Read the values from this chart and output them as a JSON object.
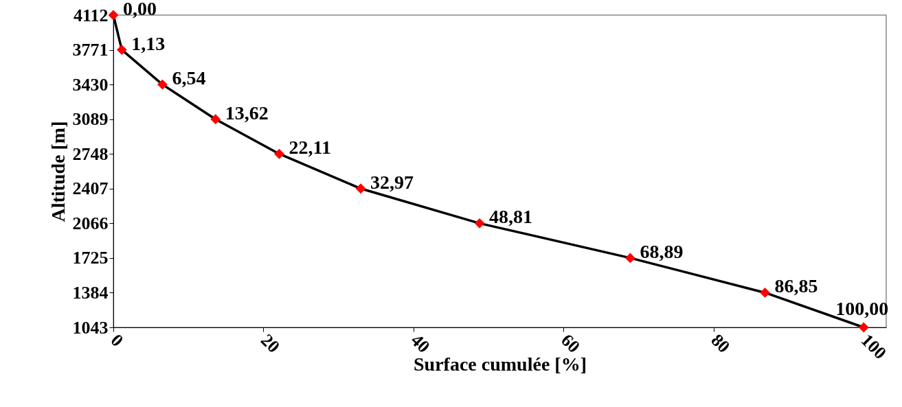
{
  "chart_data": {
    "type": "line",
    "xlabel": "Surface cumulée [%]",
    "ylabel": "Altitude [m]",
    "x": [
      0,
      1.13,
      6.54,
      13.62,
      22.11,
      32.97,
      48.81,
      68.89,
      86.85,
      100
    ],
    "series": [
      {
        "color": "#000000",
        "colors": [
          "#ff0000",
          "#ff0000",
          "#ff0000",
          "#ff0000",
          "#ff0000",
          "#ff0000",
          "#ff0000",
          "#ff0000",
          "#ff0000",
          "#ff0000"
        ],
        "values": [
          4112,
          3771,
          3430,
          3089,
          2748,
          2407,
          2066,
          1725,
          1384,
          1043
        ]
      }
    ],
    "annotations": [
      {
        "text": "0,00",
        "x": 0,
        "y": 4112
      },
      {
        "text": "1,13",
        "x": 1.13,
        "y": 3771
      },
      {
        "text": "6,54",
        "x": 6.54,
        "y": 3430
      },
      {
        "text": "13,62",
        "x": 13.62,
        "y": 3089
      },
      {
        "text": "22,11",
        "x": 22.11,
        "y": 2748
      },
      {
        "text": "32,97",
        "x": 32.97,
        "y": 2407
      },
      {
        "text": "48,81",
        "x": 48.81,
        "y": 2066
      },
      {
        "text": "68,89",
        "x": 68.89,
        "y": 1725
      },
      {
        "text": "86,85",
        "x": 86.85,
        "y": 1384
      },
      {
        "text": "100,00",
        "x": 100,
        "y": 1043
      }
    ],
    "marker": "diamond",
    "xlim": [
      0,
      103
    ],
    "xticks": [
      0,
      20,
      40,
      60,
      80,
      100
    ],
    "ylim": [
      1043,
      4112
    ],
    "yticks": [
      1043,
      1384,
      1725,
      2066,
      2407,
      2748,
      3089,
      3430,
      3771,
      4112
    ]
  }
}
